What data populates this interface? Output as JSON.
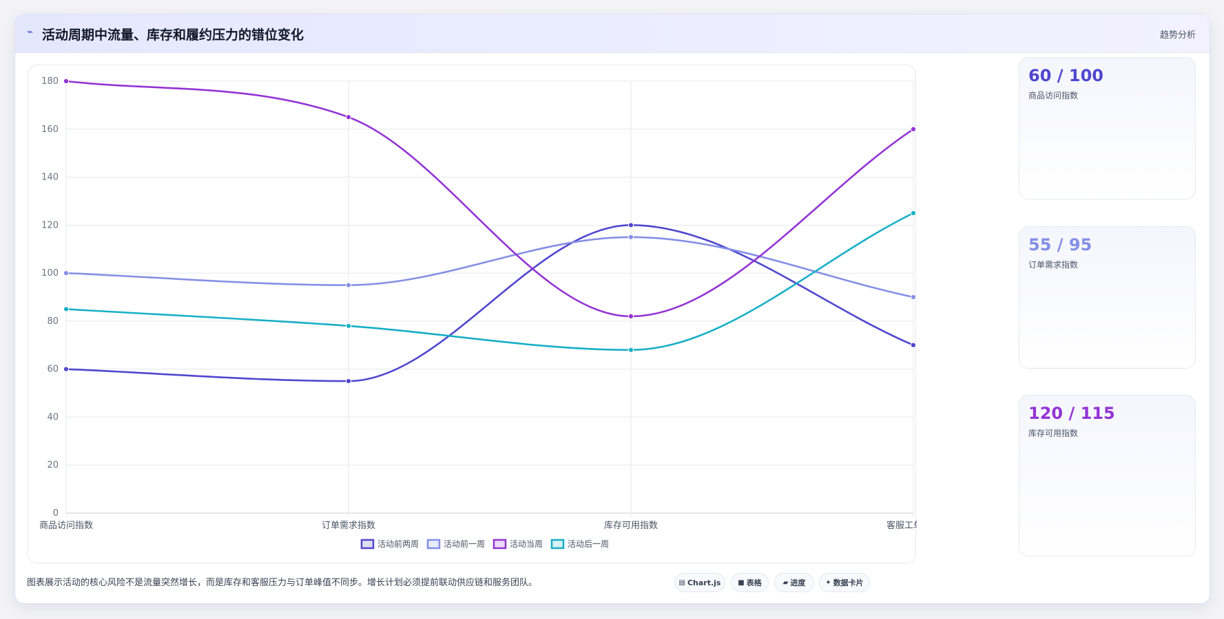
{
  "header": {
    "icon": "trend-line-icon",
    "title": "活动周期中流量、库存和履约压力的错位变化",
    "action": "趋势分析"
  },
  "chart_data": {
    "type": "line",
    "categories": [
      "商品访问指数",
      "订单需求指数",
      "库存可用指数",
      "客服工单指数"
    ],
    "ylim": [
      0,
      180
    ],
    "yticks": [
      0,
      20,
      40,
      60,
      80,
      100,
      120,
      140,
      160,
      180
    ],
    "grid": true,
    "legend_position": "bottom",
    "series": [
      {
        "name": "活动前两周",
        "color": "#4f46cf",
        "values": [
          60,
          55,
          120,
          70
        ]
      },
      {
        "name": "活动前一周",
        "color": "#848fe6",
        "values": [
          100,
          95,
          115,
          90
        ]
      },
      {
        "name": "活动当周",
        "color": "#9333d4",
        "values": [
          180,
          165,
          82,
          160
        ]
      },
      {
        "name": "活动后一周",
        "color": "#16afc6",
        "values": [
          85,
          78,
          68,
          125
        ]
      }
    ]
  },
  "stats": [
    {
      "value": "60 / 100",
      "label": "商品访问指数",
      "color": "#4f46cf"
    },
    {
      "value": "55 / 95",
      "label": "订单需求指数",
      "color": "#848fe6"
    },
    {
      "value": "120 / 115",
      "label": "库存可用指数",
      "color": "#9333d4"
    }
  ],
  "footer": {
    "note": "图表展示活动的核心风险不是流量突然增长，而是库存和客服压力与订单峰值不同步。增长计划必须提前联动供应链和服务团队。",
    "chips": [
      {
        "icon": "chart-icon",
        "label": "Chart.js"
      },
      {
        "icon": "table-icon",
        "label": "表格"
      },
      {
        "icon": "progress-icon",
        "label": "进度"
      },
      {
        "icon": "card-icon",
        "label": "数据卡片"
      }
    ]
  }
}
